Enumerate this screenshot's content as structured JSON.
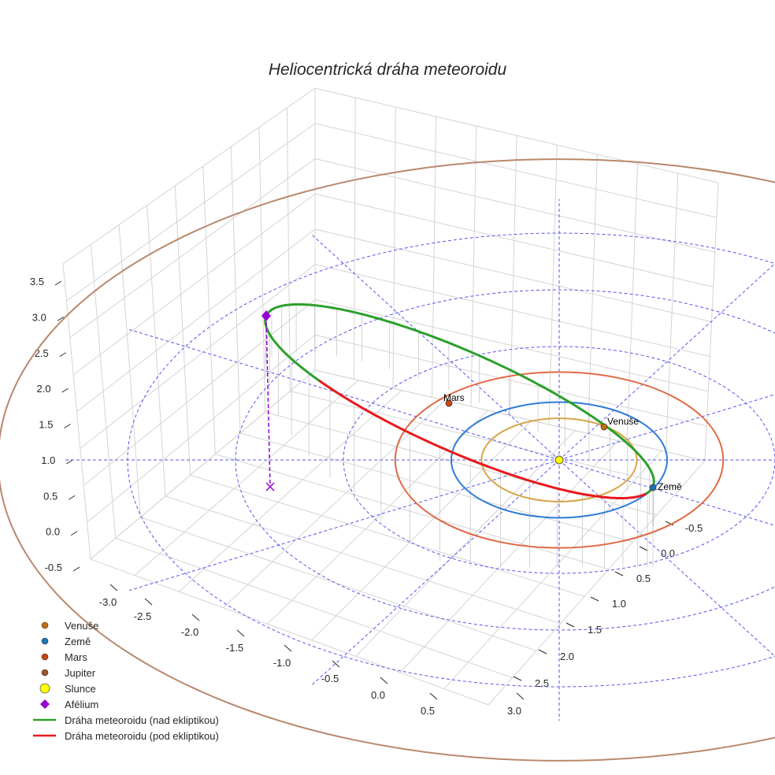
{
  "chart_data": {
    "type": "3d-orbit-plot",
    "title": "Heliocentrická dráha meteoroidu",
    "axes": {
      "x": {
        "ticks": [
          "-3.0",
          "-2.5",
          "-2.0",
          "-1.5",
          "-1.0",
          "-0.5",
          "0.0",
          "0.5",
          "3.0"
        ]
      },
      "y": {
        "ticks": [
          "-0.5",
          "0.0",
          "0.5",
          "1.0",
          "1.5",
          "2.0",
          "2.5"
        ]
      },
      "z": {
        "ticks": [
          "-0.5",
          "0.0",
          "0.5",
          "1.0",
          "1.5",
          "2.0",
          "2.5",
          "3.0",
          "3.5"
        ]
      }
    },
    "bodies": [
      {
        "name": "Venuše",
        "color": "#c07010",
        "orbit_color": "#d7a547",
        "semi_major_au": 0.72
      },
      {
        "name": "Země",
        "color": "#1f6fb4",
        "orbit_color": "#2f7bd6",
        "semi_major_au": 1.0
      },
      {
        "name": "Mars",
        "color": "#c8430f",
        "orbit_color": "#e06a45",
        "semi_major_au": 1.52
      },
      {
        "name": "Jupiter",
        "color": "#a0522d",
        "orbit_color": "#b9886b",
        "semi_major_au": 5.2
      },
      {
        "name": "Slunce",
        "color": "#ffff00"
      }
    ],
    "aphelion": {
      "label": "Afélium",
      "color": "#9400d3",
      "height_above_ecliptic": 2.9
    },
    "meteoroid_orbit": {
      "above": {
        "label": "Dráha meteoroidu (nad ekliptikou)",
        "color": "#2ca02c"
      },
      "below": {
        "label": "Dráha meteoroidu (pod ekliptikou)",
        "color": "#e8191c"
      }
    },
    "ecliptic_grid_color": "#5555ee",
    "legend": [
      {
        "label": "Venuše",
        "marker": "circle",
        "color": "#c07010"
      },
      {
        "label": "Země",
        "marker": "circle",
        "color": "#1f77b4"
      },
      {
        "label": "Mars",
        "marker": "circle",
        "color": "#c8430f"
      },
      {
        "label": "Jupiter",
        "marker": "circle",
        "color": "#a0522d"
      },
      {
        "label": "Slunce",
        "marker": "circle-large",
        "color": "#ffff00"
      },
      {
        "label": "Afélium",
        "marker": "diamond",
        "color": "#9400d3"
      },
      {
        "label": "Dráha meteoroidu (nad ekliptikou)",
        "marker": "line",
        "color": "#2ca02c"
      },
      {
        "label": "Dráha meteoroidu (pod ekliptikou)",
        "marker": "line",
        "color": "#e8191c"
      }
    ],
    "point_labels": [
      "Venuše",
      "Země",
      "Mars"
    ]
  }
}
